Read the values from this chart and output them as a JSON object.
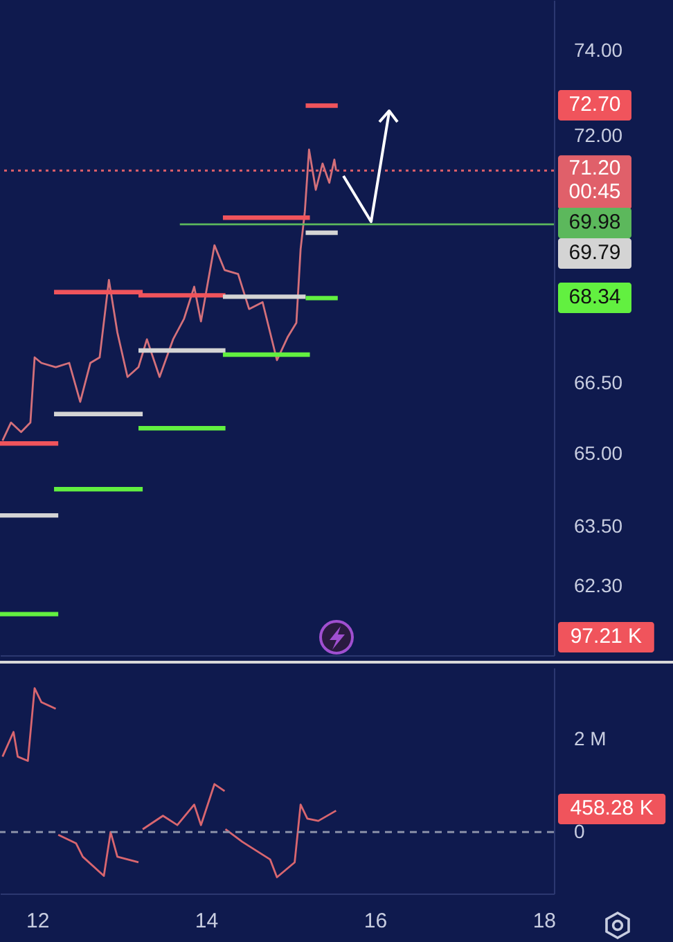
{
  "chart_data": [
    {
      "type": "line",
      "xlim": [
        11.56,
        18.12
      ],
      "ylim": [
        60.93,
        75.21
      ],
      "log": "y",
      "tick_labels": "y",
      "xticks": [
        12,
        14,
        16,
        18
      ],
      "yticks": [
        {
          "value": 62.3,
          "label": "62.30"
        },
        {
          "value": 63.5,
          "label": "63.50"
        },
        {
          "value": 65,
          "label": "65.00"
        },
        {
          "value": 66.5,
          "label": "66.50"
        },
        {
          "value": 72,
          "label": "72.00"
        },
        {
          "value": 74,
          "label": "74.00"
        }
      ],
      "series": [
        {
          "color": "#d4707a",
          "x": [
            11.59,
            11.69,
            11.81,
            11.92,
            11.97,
            12.05,
            12.22,
            12.38,
            12.51,
            12.63,
            12.74,
            12.85,
            12.95,
            13.07,
            13.2,
            13.3,
            13.45,
            13.61,
            13.74,
            13.86,
            13.94,
            14.1,
            14.22,
            14.38,
            14.51,
            14.67,
            14.84,
            14.97,
            15.07,
            15.12,
            15.17,
            15.22,
            15.3,
            15.38,
            15.46,
            15.52,
            15.54
          ],
          "values": [
            65.28,
            65.66,
            65.46,
            65.66,
            67.05,
            66.93,
            66.84,
            66.93,
            66.1,
            66.93,
            67.05,
            68.74,
            67.59,
            66.63,
            66.84,
            67.44,
            66.63,
            67.44,
            67.89,
            68.59,
            67.83,
            69.51,
            68.96,
            68.87,
            68.1,
            68.25,
            66.99,
            67.5,
            67.8,
            69.42,
            70.26,
            71.68,
            70.76,
            71.36,
            70.92,
            71.45,
            71.2
          ]
        },
        {
          "color": "#f0545c",
          "x": [
            11.56,
            12.25
          ],
          "values": [
            65.22,
            65.22
          ]
        },
        {
          "color": "#f0545c",
          "x": [
            12.2,
            13.25
          ],
          "values": [
            68.47,
            68.47
          ]
        },
        {
          "color": "#f0545c",
          "x": [
            13.2,
            14.23
          ],
          "values": [
            68.4,
            68.4
          ]
        },
        {
          "color": "#f0545c",
          "x": [
            14.2,
            15.23
          ],
          "values": [
            70.13,
            70.13
          ]
        },
        {
          "color": "#f0545c",
          "x": [
            15.18,
            15.56
          ],
          "values": [
            72.7,
            72.7
          ]
        },
        {
          "color": "#d4d4d4",
          "x": [
            11.56,
            12.25
          ],
          "values": [
            63.73,
            63.73
          ]
        },
        {
          "color": "#d4d4d4",
          "x": [
            12.2,
            13.25
          ],
          "values": [
            65.84,
            65.84
          ]
        },
        {
          "color": "#d4d4d4",
          "x": [
            13.2,
            14.23
          ],
          "values": [
            67.2,
            67.2
          ]
        },
        {
          "color": "#d4d4d4",
          "x": [
            14.2,
            15.18
          ],
          "values": [
            68.37,
            68.37
          ]
        },
        {
          "color": "#d4d4d4",
          "x": [
            15.18,
            15.56
          ],
          "values": [
            69.79,
            69.79
          ]
        },
        {
          "color": "#62f040",
          "x": [
            11.56,
            12.25
          ],
          "values": [
            61.74,
            61.74
          ]
        },
        {
          "color": "#62f040",
          "x": [
            12.2,
            13.25
          ],
          "values": [
            64.27,
            64.27
          ]
        },
        {
          "color": "#62f040",
          "x": [
            13.2,
            14.23
          ],
          "values": [
            65.54,
            65.54
          ]
        },
        {
          "color": "#62f040",
          "x": [
            14.2,
            15.23
          ],
          "values": [
            67.11,
            67.11
          ]
        },
        {
          "color": "#62f040",
          "x": [
            15.18,
            15.56
          ],
          "values": [
            68.34,
            68.34
          ]
        },
        {
          "color": "#5cb85c",
          "x": [
            13.69,
            18.12
          ],
          "values": [
            69.98,
            69.98
          ]
        }
      ],
      "ref_lines": [
        {
          "axis": "y",
          "value": 71.2,
          "label": "71.20\n00:45",
          "color": "#e0606a",
          "line_style": "dotted"
        }
      ],
      "annotations": [
        "72.70",
        "69.98",
        "69.79",
        "68.34",
        "97.21 K"
      ]
    },
    {
      "type": "line",
      "xlim": [
        11.56,
        18.12
      ],
      "ylim": [
        -1.32,
        3.53
      ],
      "xticks": [
        12,
        14,
        16,
        18
      ],
      "yticks": [
        0,
        {
          "value": 2,
          "label": "2 M"
        }
      ],
      "series": [
        {
          "color": "#d9666f",
          "x": [
            11.59,
            11.72,
            11.77,
            11.89,
            11.97,
            12.05,
            12.22
          ],
          "values": [
            1.62,
            2.15,
            1.62,
            1.53,
            3.09,
            2.79,
            2.65
          ]
        },
        {
          "color": "#d9666f",
          "x": [
            12.25,
            12.46,
            12.54,
            12.79,
            12.87,
            12.95,
            13.2
          ],
          "values": [
            -0.06,
            -0.24,
            -0.53,
            -0.94,
            0,
            -0.53,
            -0.65
          ]
        },
        {
          "color": "#d9666f",
          "x": [
            13.25,
            13.49,
            13.66,
            13.86,
            13.94,
            14.1,
            14.22
          ],
          "values": [
            0.06,
            0.35,
            0.15,
            0.59,
            0.15,
            1.03,
            0.88
          ]
        },
        {
          "color": "#d9666f",
          "x": [
            14.23,
            14.43,
            14.76,
            14.84,
            15.05,
            15.12,
            15.2,
            15.33,
            15.54
          ],
          "values": [
            0.06,
            -0.21,
            -0.59,
            -0.97,
            -0.65,
            0.59,
            0.29,
            0.24,
            0.46
          ]
        }
      ],
      "ref_lines": [
        {
          "axis": "y",
          "value": 0,
          "color": "#8a90a8",
          "line_style": "dashed"
        }
      ],
      "annotations": [
        "458.28 K"
      ]
    }
  ]
}
